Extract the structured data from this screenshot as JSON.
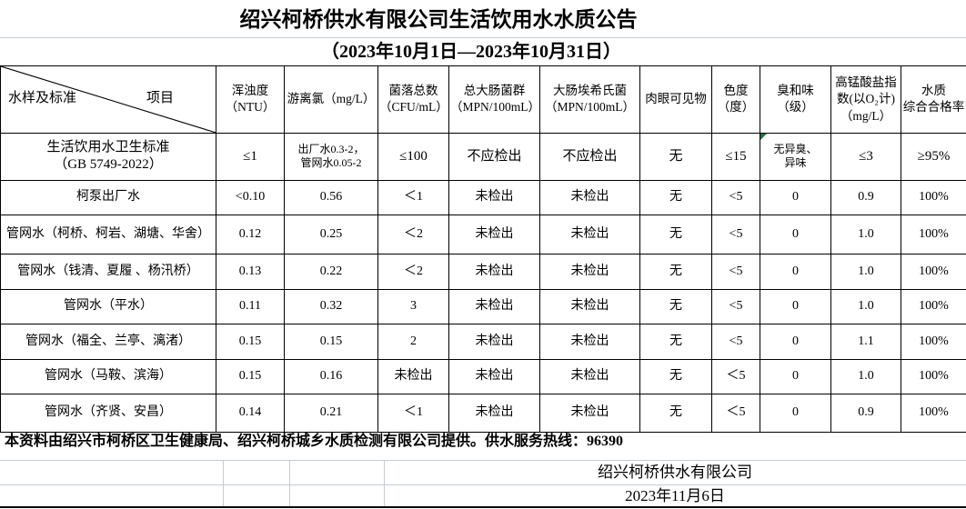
{
  "page": {
    "title": "绍兴柯桥供水有限公司生活饮用水水质公告",
    "subtitle": "（2023年10月1日—2023年10月31日）"
  },
  "table": {
    "corner": {
      "sample_label": "水样及标准",
      "item_label": "项目"
    },
    "columns": [
      "浑浊度\n（NTU）",
      "游离氯（mg/L）",
      "菌落总数\n（CFU/mL）",
      "总大肠菌群\n（MPN/100mL）",
      "大肠埃希氏菌\n（MPN/100mL）",
      "肉眼可见物",
      "色度\n（度）",
      "臭和味\n（级）",
      "高锰酸盐指\n数(以O₂计)\n（mg/L）",
      "水质\n综合合格率"
    ],
    "rows": [
      {
        "label": "生活饮用水卫生标准\n（GB 5749-2022）",
        "cells": [
          "≤1",
          "出厂水0.3-2，\n管网水0.05-2",
          "≤100",
          "不应检出",
          "不应检出",
          "无",
          "≤15",
          "无异臭、\n异味",
          "≤3",
          "≥95%"
        ]
      },
      {
        "label": "柯泵出厂水",
        "cells": [
          "<0.10",
          "0.56",
          "＜1",
          "未检出",
          "未检出",
          "无",
          "<5",
          "0",
          "0.9",
          "100%"
        ]
      },
      {
        "label": "管网水（柯桥、柯岩、湖塘、华舍）",
        "cells": [
          "0.12",
          "0.25",
          "＜2",
          "未检出",
          "未检出",
          "无",
          "<5",
          "0",
          "1.0",
          "100%"
        ]
      },
      {
        "label": "管网水（钱清、夏履 、杨汛桥）",
        "cells": [
          "0.13",
          "0.22",
          "＜2",
          "未检出",
          "未检出",
          "无",
          "<5",
          "0",
          "1.0",
          "100%"
        ]
      },
      {
        "label": "管网水（平水）",
        "cells": [
          "0.11",
          "0.32",
          "3",
          "未检出",
          "未检出",
          "无",
          "<5",
          "0",
          "1.0",
          "100%"
        ]
      },
      {
        "label": "管网水（福全、兰亭、漓渚）",
        "cells": [
          "0.15",
          "0.15",
          "2",
          "未检出",
          "未检出",
          "无",
          "<5",
          "0",
          "1.1",
          "100%"
        ]
      },
      {
        "label": "管网水（马鞍、滨海）",
        "cells": [
          "0.15",
          "0.16",
          "未检出",
          "未检出",
          "未检出",
          "无",
          "＜5",
          "0",
          "1.0",
          "100%"
        ]
      },
      {
        "label": "管网水（齐贤、安昌）",
        "cells": [
          "0.14",
          "0.21",
          "＜1",
          "未检出",
          "未检出",
          "无",
          "＜5",
          "0",
          "0.9",
          "100%"
        ]
      }
    ]
  },
  "footer": {
    "note": "本资料由绍兴市柯桥区卫生健康局、绍兴柯桥城乡水质检测有限公司提供。供水服务热线：96390",
    "company": "绍兴柯桥供水有限公司",
    "date": "2023年11月6日"
  },
  "colors": {
    "border": "#000000",
    "gridline": "#c6ccd3",
    "flag_green": "#217346",
    "text": "#000000"
  }
}
